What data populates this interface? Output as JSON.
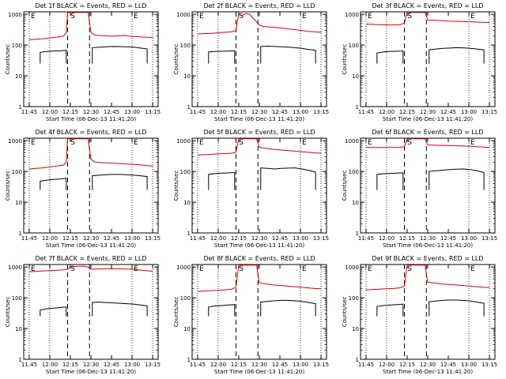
{
  "colors": {
    "events": "#000000",
    "lld": "#dd0000",
    "axis": "#000000"
  },
  "chart_data": [
    {
      "type": "line",
      "title": "Det 1f BLACK = Events, RED = LLD",
      "xlabel": "Start Time (06-Dec-13 11:41:20)",
      "ylabel": "Counts/sec",
      "xticks": [
        "11:45",
        "12:00",
        "12:15",
        "12:30",
        "12:45",
        "13:00",
        "13:15"
      ],
      "yticks": [
        "1",
        "10",
        "100",
        "1000"
      ],
      "ylim": [
        1,
        1200
      ],
      "xlim_minutes": [
        11.45,
        13.25
      ],
      "yscale": "log",
      "markers": [
        "E",
        "S",
        "E"
      ],
      "series": [
        {
          "name": "LLD",
          "x": [
            "11:45",
            "11:50",
            "11:55",
            "12:00",
            "12:05",
            "12:10",
            "12:12",
            "12:13",
            "12:15",
            "12:20",
            "12:25",
            "12:28",
            "12:30",
            "12:33",
            "12:40",
            "12:45",
            "12:50",
            "12:55",
            "13:00",
            "13:05",
            "13:10",
            "13:15"
          ],
          "values": [
            150,
            155,
            160,
            170,
            180,
            195,
            250,
            1150,
            1150,
            1150,
            1150,
            1150,
            260,
            210,
            200,
            195,
            200,
            205,
            190,
            185,
            180,
            175
          ]
        },
        {
          "name": "Events",
          "x": [
            "11:53",
            "11:58",
            "12:03",
            "12:08",
            "12:12",
            "12:31",
            "12:36",
            "12:41",
            "12:46",
            "12:51",
            "12:56",
            "13:01",
            "13:06",
            "13:11"
          ],
          "values": [
            58,
            62,
            64,
            65,
            68,
            82,
            85,
            88,
            90,
            89,
            88,
            86,
            80,
            75
          ]
        }
      ]
    },
    {
      "type": "line",
      "title": "Det 2f BLACK = Events, RED = LLD",
      "xlabel": "Start Time (06-Dec-13 11:41:20)",
      "ylabel": "Counts/sec",
      "xticks": [
        "11:45",
        "12:00",
        "12:15",
        "12:30",
        "12:45",
        "13:00",
        "13:15"
      ],
      "yticks": [
        "1",
        "10",
        "100",
        "1000"
      ],
      "ylim": [
        1,
        1200
      ],
      "yscale": "log",
      "markers": [
        "E",
        "S",
        "E"
      ],
      "series": [
        {
          "name": "LLD",
          "x": [
            "11:45",
            "11:50",
            "11:55",
            "12:00",
            "12:05",
            "12:10",
            "12:13",
            "12:15",
            "12:17",
            "12:20",
            "12:23",
            "12:26",
            "12:30",
            "12:33",
            "12:40",
            "12:45",
            "12:50",
            "12:55",
            "13:00",
            "13:05",
            "13:10",
            "13:15"
          ],
          "values": [
            230,
            235,
            240,
            250,
            260,
            270,
            300,
            1050,
            900,
            1050,
            1000,
            700,
            450,
            400,
            380,
            360,
            340,
            320,
            300,
            280,
            270,
            260
          ]
        },
        {
          "name": "Events",
          "x": [
            "11:53",
            "11:58",
            "12:03",
            "12:08",
            "12:12",
            "12:31",
            "12:36",
            "12:41",
            "12:46",
            "12:51",
            "12:56",
            "13:01",
            "13:06",
            "13:11"
          ],
          "values": [
            60,
            62,
            63,
            64,
            65,
            90,
            92,
            90,
            88,
            86,
            82,
            78,
            72,
            68
          ]
        }
      ]
    },
    {
      "type": "line",
      "title": "Det 3f BLACK = Events, RED = LLD",
      "xlabel": "Start Time (06-Dec-13 11:41:20)",
      "ylabel": "Counts/sec",
      "xticks": [
        "11:45",
        "12:00",
        "12:15",
        "12:30",
        "12:45",
        "13:00",
        "13:15"
      ],
      "yticks": [
        "1",
        "10",
        "100",
        "1000"
      ],
      "ylim": [
        1,
        1200
      ],
      "yscale": "log",
      "markers": [
        "E",
        "S",
        "E"
      ],
      "series": [
        {
          "name": "LLD",
          "x": [
            "11:45",
            "11:50",
            "11:55",
            "12:00",
            "12:05",
            "12:10",
            "12:13",
            "12:15",
            "12:20",
            "12:25",
            "12:28",
            "12:30",
            "12:35",
            "12:40",
            "12:45",
            "12:50",
            "12:55",
            "13:00",
            "13:05",
            "13:10",
            "13:15"
          ],
          "values": [
            480,
            470,
            460,
            450,
            450,
            460,
            520,
            1150,
            1150,
            1150,
            1150,
            650,
            640,
            620,
            600,
            590,
            580,
            570,
            560,
            550,
            540
          ]
        },
        {
          "name": "Events",
          "x": [
            "11:53",
            "11:58",
            "12:03",
            "12:08",
            "12:12",
            "12:31",
            "12:36",
            "12:41",
            "12:46",
            "12:51",
            "12:56",
            "13:01",
            "13:06",
            "13:11"
          ],
          "values": [
            55,
            60,
            62,
            63,
            64,
            70,
            74,
            78,
            80,
            82,
            81,
            78,
            74,
            70
          ]
        }
      ]
    },
    {
      "type": "line",
      "title": "Det 4f BLACK = Events, RED = LLD",
      "xlabel": "Start Time (06-Dec-13 11:41:20)",
      "ylabel": "Counts/sec",
      "xticks": [
        "11:45",
        "12:00",
        "12:15",
        "12:30",
        "12:45",
        "13:00",
        "13:15"
      ],
      "yticks": [
        "1",
        "10",
        "100",
        "1000"
      ],
      "ylim": [
        1,
        1200
      ],
      "yscale": "log",
      "markers": [
        "E",
        "S",
        "E"
      ],
      "series": [
        {
          "name": "LLD",
          "x": [
            "11:45",
            "11:50",
            "11:55",
            "12:00",
            "12:05",
            "12:10",
            "12:12",
            "12:13",
            "12:15",
            "12:20",
            "12:25",
            "12:28",
            "12:30",
            "12:33",
            "12:40",
            "12:45",
            "12:50",
            "12:55",
            "13:00",
            "13:05",
            "13:10",
            "13:15"
          ],
          "values": [
            120,
            125,
            130,
            140,
            150,
            160,
            200,
            1150,
            1150,
            1150,
            1150,
            1150,
            250,
            200,
            190,
            185,
            180,
            175,
            170,
            165,
            155,
            150
          ]
        },
        {
          "name": "Events",
          "x": [
            "11:53",
            "11:58",
            "12:03",
            "12:08",
            "12:12",
            "12:31",
            "12:36",
            "12:41",
            "12:46",
            "12:51",
            "12:56",
            "13:01",
            "13:06",
            "13:11"
          ],
          "values": [
            48,
            52,
            55,
            57,
            60,
            72,
            75,
            78,
            80,
            80,
            78,
            76,
            72,
            68
          ]
        }
      ]
    },
    {
      "type": "line",
      "title": "Det 5f BLACK = Events, RED = LLD",
      "xlabel": "Start Time (06-Dec-13 11:41:20)",
      "ylabel": "Counts/sec",
      "xticks": [
        "11:45",
        "12:00",
        "12:15",
        "12:30",
        "12:45",
        "13:00",
        "13:15"
      ],
      "yticks": [
        "1",
        "10",
        "100",
        "1000"
      ],
      "ylim": [
        1,
        1200
      ],
      "yscale": "log",
      "markers": [
        "E",
        "S",
        "E"
      ],
      "series": [
        {
          "name": "LLD",
          "x": [
            "11:45",
            "11:50",
            "11:55",
            "12:00",
            "12:05",
            "12:10",
            "12:13",
            "12:15",
            "12:20",
            "12:25",
            "12:28",
            "12:30",
            "12:35",
            "12:40",
            "12:45",
            "12:50",
            "12:55",
            "13:00",
            "13:05",
            "13:10",
            "13:15"
          ],
          "values": [
            340,
            350,
            360,
            370,
            380,
            390,
            420,
            1150,
            1150,
            1150,
            1150,
            600,
            560,
            520,
            500,
            480,
            460,
            440,
            420,
            400,
            390
          ]
        },
        {
          "name": "Events",
          "x": [
            "11:53",
            "11:58",
            "12:03",
            "12:08",
            "12:12",
            "12:31",
            "12:36",
            "12:41",
            "12:46",
            "12:51",
            "12:56",
            "13:01",
            "13:06",
            "13:11"
          ],
          "values": [
            80,
            85,
            88,
            90,
            92,
            130,
            125,
            120,
            125,
            128,
            130,
            120,
            108,
            95
          ]
        }
      ]
    },
    {
      "type": "line",
      "title": "Det 6f BLACK = Events, RED = LLD",
      "xlabel": "Start Time (06-Dec-13 11:41:20)",
      "ylabel": "Counts/sec",
      "xticks": [
        "11:45",
        "12:00",
        "12:15",
        "12:30",
        "12:45",
        "13:00",
        "13:15"
      ],
      "yticks": [
        "1",
        "10",
        "100",
        "1000"
      ],
      "ylim": [
        1,
        1200
      ],
      "yscale": "log",
      "markers": [
        "E",
        "S",
        "E"
      ],
      "series": [
        {
          "name": "LLD",
          "x": [
            "11:45",
            "11:50",
            "11:55",
            "12:00",
            "12:05",
            "12:10",
            "12:13",
            "12:15",
            "12:20",
            "12:25",
            "12:28",
            "12:30",
            "12:35",
            "12:40",
            "12:45",
            "12:50",
            "12:55",
            "13:00",
            "13:05",
            "13:10",
            "13:15"
          ],
          "values": [
            600,
            600,
            600,
            600,
            600,
            600,
            640,
            1150,
            1150,
            1150,
            1150,
            720,
            710,
            700,
            690,
            680,
            670,
            660,
            640,
            620,
            600
          ]
        },
        {
          "name": "Events",
          "x": [
            "11:53",
            "11:58",
            "12:03",
            "12:08",
            "12:12",
            "12:31",
            "12:36",
            "12:41",
            "12:46",
            "12:51",
            "12:56",
            "13:01",
            "13:06",
            "13:11"
          ],
          "values": [
            80,
            84,
            86,
            88,
            90,
            100,
            105,
            110,
            115,
            118,
            120,
            115,
            105,
            92
          ]
        }
      ]
    },
    {
      "type": "line",
      "title": "Det 7f BLACK = Events, RED = LLD",
      "xlabel": "Start Time (06-Dec-13 11:41:20)",
      "ylabel": "Counts/sec",
      "xticks": [
        "11:45",
        "12:00",
        "12:15",
        "12:30",
        "12:45",
        "13:00",
        "13:15"
      ],
      "yticks": [
        "1",
        "10",
        "100",
        "1000"
      ],
      "ylim": [
        1,
        1200
      ],
      "yscale": "log",
      "markers": [
        "E",
        "S",
        "E"
      ],
      "series": [
        {
          "name": "LLD",
          "x": [
            "11:45",
            "11:50",
            "11:55",
            "12:00",
            "12:05",
            "12:10",
            "12:13",
            "12:15",
            "12:20",
            "12:25",
            "12:28",
            "12:30",
            "12:35",
            "12:40",
            "12:45",
            "12:50",
            "12:55",
            "13:00",
            "13:05",
            "13:10",
            "13:15"
          ],
          "values": [
            700,
            720,
            740,
            760,
            780,
            800,
            850,
            1000,
            1050,
            1050,
            1000,
            850,
            860,
            870,
            880,
            870,
            860,
            850,
            800,
            760,
            720
          ]
        },
        {
          "name": "Events",
          "x": [
            "11:53",
            "11:58",
            "12:03",
            "12:08",
            "12:12",
            "12:31",
            "12:36",
            "12:41",
            "12:46",
            "12:51",
            "12:56",
            "13:01",
            "13:06",
            "13:11"
          ],
          "values": [
            40,
            44,
            46,
            48,
            50,
            70,
            72,
            70,
            68,
            66,
            64,
            62,
            58,
            54
          ]
        }
      ]
    },
    {
      "type": "line",
      "title": "Det 8f BLACK = Events, RED = LLD",
      "xlabel": "Start Time (06-Dec-13 11:41:20)",
      "ylabel": "Counts/sec",
      "xticks": [
        "11:45",
        "12:00",
        "12:15",
        "12:30",
        "12:45",
        "13:00",
        "13:15"
      ],
      "yticks": [
        "1",
        "10",
        "100",
        "1000"
      ],
      "ylim": [
        1,
        1200
      ],
      "yscale": "log",
      "markers": [
        "E",
        "S",
        "E"
      ],
      "series": [
        {
          "name": "LLD",
          "x": [
            "11:45",
            "11:50",
            "11:55",
            "12:00",
            "12:05",
            "12:10",
            "12:13",
            "12:15",
            "12:20",
            "12:25",
            "12:28",
            "12:30",
            "12:35",
            "12:40",
            "12:45",
            "12:50",
            "12:55",
            "13:00",
            "13:05",
            "13:10",
            "13:15"
          ],
          "values": [
            160,
            165,
            170,
            175,
            180,
            190,
            220,
            1150,
            1150,
            1150,
            1150,
            300,
            280,
            260,
            250,
            240,
            230,
            220,
            210,
            200,
            195
          ]
        },
        {
          "name": "Events",
          "x": [
            "11:53",
            "11:58",
            "12:03",
            "12:08",
            "12:12",
            "12:31",
            "12:36",
            "12:41",
            "12:46",
            "12:51",
            "12:56",
            "13:01",
            "13:06",
            "13:11"
          ],
          "values": [
            50,
            54,
            56,
            58,
            60,
            72,
            76,
            80,
            82,
            82,
            80,
            76,
            70,
            64
          ]
        }
      ]
    },
    {
      "type": "line",
      "title": "Det 9f BLACK = Events, RED = LLD",
      "xlabel": "Start Time (06-Dec-13 11:41:20)",
      "ylabel": "Counts/sec",
      "xticks": [
        "11:45",
        "12:00",
        "12:15",
        "12:30",
        "12:45",
        "13:00",
        "13:15"
      ],
      "yticks": [
        "1",
        "10",
        "100",
        "1000"
      ],
      "ylim": [
        1,
        1200
      ],
      "yscale": "log",
      "markers": [
        "E",
        "S",
        "E"
      ],
      "series": [
        {
          "name": "LLD",
          "x": [
            "11:45",
            "11:50",
            "11:55",
            "12:00",
            "12:05",
            "12:10",
            "12:13",
            "12:15",
            "12:20",
            "12:25",
            "12:28",
            "12:30",
            "12:35",
            "12:40",
            "12:45",
            "12:50",
            "12:55",
            "13:00",
            "13:05",
            "13:10",
            "13:15"
          ],
          "values": [
            180,
            185,
            190,
            195,
            200,
            210,
            240,
            1150,
            1150,
            1150,
            1150,
            320,
            300,
            280,
            270,
            260,
            250,
            240,
            230,
            220,
            215
          ]
        },
        {
          "name": "Events",
          "x": [
            "11:53",
            "11:58",
            "12:03",
            "12:08",
            "12:12",
            "12:31",
            "12:36",
            "12:41",
            "12:46",
            "12:51",
            "12:56",
            "13:01",
            "13:06",
            "13:11"
          ],
          "values": [
            52,
            56,
            58,
            60,
            62,
            74,
            78,
            82,
            84,
            84,
            82,
            78,
            72,
            66
          ]
        }
      ]
    }
  ]
}
